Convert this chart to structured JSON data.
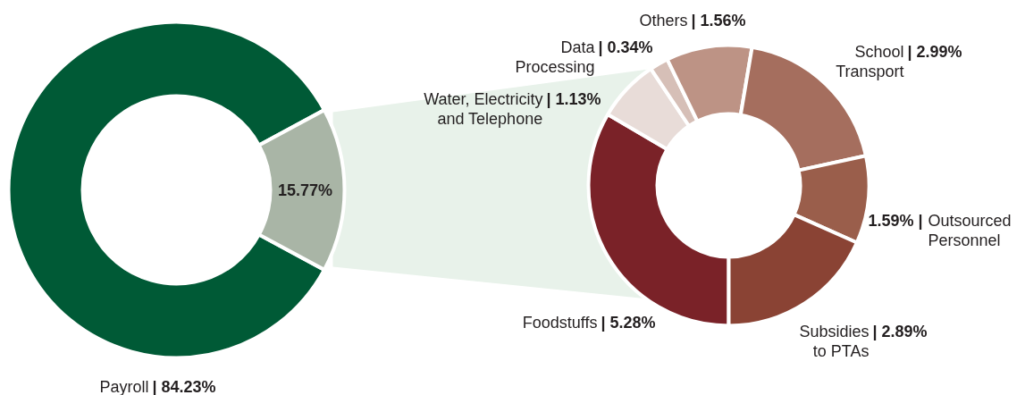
{
  "chart_data": [
    {
      "type": "donut",
      "categories": [
        "Payroll",
        null
      ],
      "values": [
        84.23,
        15.77
      ],
      "colors": [
        "#005a36",
        "#a9b5a6"
      ],
      "value_labels": [
        "| 84.23%",
        "15.77%"
      ]
    },
    {
      "type": "donut",
      "categories": [
        "Foodstuffs",
        "Water, Electricity\nand Telephone",
        "Data\nProcessing",
        "Others",
        "School\nTransport",
        "Outsourced\nPersonnel",
        "Subsidies\nto PTAs"
      ],
      "values": [
        5.28,
        1.13,
        0.34,
        1.56,
        2.99,
        1.59,
        2.89
      ],
      "colors": [
        "#7a2228",
        "#e8dcd8",
        "#d6bfb7",
        "#bd9385",
        "#a56e5e",
        "#9a5e4b",
        "#8a4334"
      ],
      "value_labels": [
        "| 5.28%",
        "| 1.13%",
        "| 0.34%",
        "| 1.56%",
        "| 2.99%",
        "1.59% |",
        "| 2.89%"
      ]
    }
  ]
}
